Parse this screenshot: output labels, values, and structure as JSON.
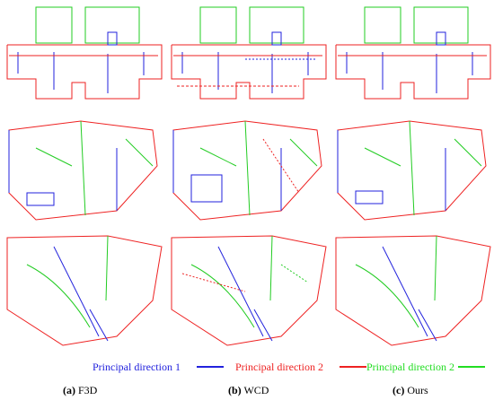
{
  "legend": {
    "items": [
      {
        "label": "Principal direction 1",
        "color": "#2222dd"
      },
      {
        "label": "Principal direction 2",
        "color": "#ee2222"
      },
      {
        "label": "Principal direction 2",
        "color": "#22dd22"
      }
    ]
  },
  "captions": [
    {
      "letter": "(a)",
      "text": " F3D"
    },
    {
      "letter": "(b)",
      "text": " WCD"
    },
    {
      "letter": "(c)",
      "text": " Ours"
    }
  ],
  "colors": {
    "blue": "#2222dd",
    "red": "#ee2222",
    "green": "#22cc22"
  }
}
